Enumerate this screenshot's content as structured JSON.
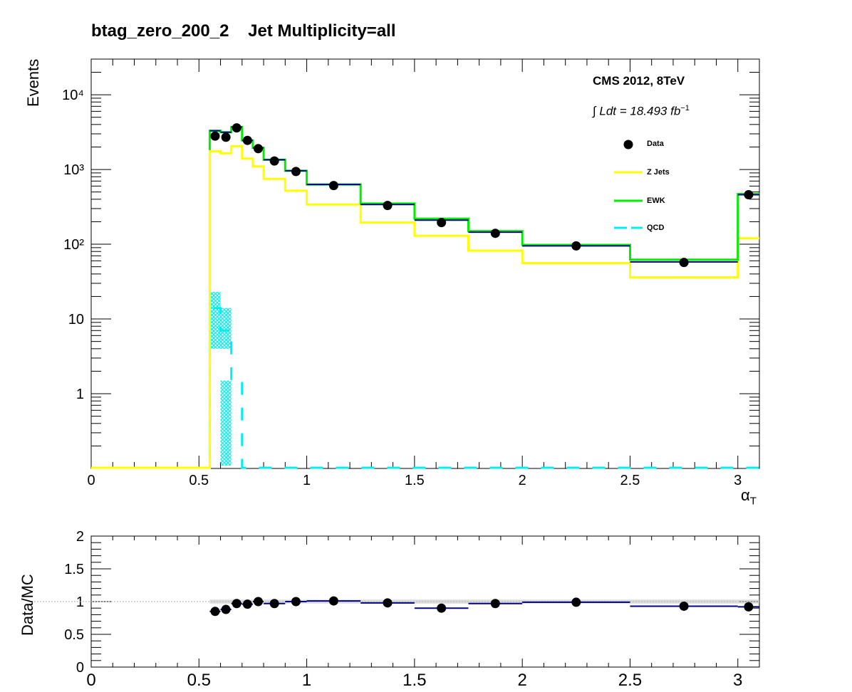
{
  "title": "btag_zero_200_2    Jet Multiplicity=all",
  "annotations": {
    "cms": "CMS 2012, 8TeV",
    "lumi_prefix": "∫ Ldt = 18.493 ",
    "lumi_unit": "fb",
    "lumi_exp": "−1"
  },
  "colors": {
    "data": "#000000",
    "zjets": "#ffff00",
    "ewk": "#00ee00",
    "qcd": "#00eeee",
    "total": "#00008b",
    "ratio_band": "#c0c0c0"
  },
  "chart_data": [
    {
      "type": "line",
      "subtype": "step-histogram",
      "ylabel": "Events",
      "xlabel": "α",
      "xlabel_sub": "T",
      "yscale": "log",
      "xlim": [
        0,
        3.1
      ],
      "ylim": [
        0.1,
        30000
      ],
      "xticks": [
        "0",
        "0.5",
        "1",
        "1.5",
        "2",
        "2.5",
        "3"
      ],
      "yticks": [
        "1",
        "10",
        "10²",
        "10³",
        "10⁴"
      ],
      "legend_position": "top-right",
      "bin_edges": [
        0,
        0.55,
        0.6,
        0.65,
        0.7,
        0.75,
        0.8,
        0.9,
        1.0,
        1.25,
        1.5,
        1.75,
        2.0,
        2.5,
        3.0,
        3.1
      ],
      "series": [
        {
          "name": "Z Jets",
          "values": [
            0.1,
            1750,
            1650,
            2050,
            1400,
            1100,
            750,
            520,
            340,
            195,
            130,
            82,
            56,
            36,
            120
          ]
        },
        {
          "name": "EWK",
          "values": [
            0.1,
            3300,
            3150,
            3700,
            2450,
            1950,
            1350,
            960,
            630,
            350,
            220,
            150,
            98,
            62,
            470
          ]
        },
        {
          "name": "QCD",
          "values": [
            0.1,
            14,
            7,
            1.5,
            0.1,
            0.1,
            0.1,
            0.1,
            0.1,
            0.1,
            0.1,
            0.1,
            0.1,
            0.1,
            0.1
          ]
        },
        {
          "name": "Data",
          "x": [
            0.575,
            0.625,
            0.675,
            0.725,
            0.775,
            0.85,
            0.95,
            1.125,
            1.375,
            1.625,
            1.875,
            2.25,
            2.75,
            3.05
          ],
          "values": [
            2800,
            2700,
            3600,
            2450,
            1900,
            1300,
            940,
            610,
            330,
            195,
            140,
            95,
            57,
            460
          ]
        }
      ],
      "total_mc": [
        0.1,
        3300,
        3150,
        3700,
        2450,
        1950,
        1350,
        960,
        630,
        340,
        210,
        145,
        95,
        58,
        460
      ],
      "qcd_band_low": [
        0.1,
        4,
        4,
        0.1,
        0.1
      ],
      "qcd_band_high": [
        0.1,
        23,
        14,
        0.1,
        0.1
      ]
    },
    {
      "type": "scatter",
      "ylabel": "Data/MC",
      "xlim": [
        0,
        3.1
      ],
      "ylim": [
        0,
        2
      ],
      "xticks": [
        "0",
        "0.5",
        "1",
        "1.5",
        "2",
        "2.5",
        "3"
      ],
      "yticks": [
        "0",
        "0.5",
        "1",
        "1.5",
        "2"
      ],
      "x": [
        0.575,
        0.625,
        0.675,
        0.725,
        0.775,
        0.85,
        0.95,
        1.125,
        1.375,
        1.625,
        1.875,
        2.25,
        2.75,
        3.05
      ],
      "values": [
        0.85,
        0.88,
        0.97,
        0.96,
        1.0,
        0.97,
        1.0,
        1.01,
        0.98,
        0.9,
        0.97,
        0.99,
        0.93,
        0.92
      ],
      "bin_low": [
        0.55,
        0.6,
        0.65,
        0.7,
        0.75,
        0.8,
        0.9,
        1.0,
        1.25,
        1.5,
        1.75,
        2.0,
        2.5,
        3.0
      ],
      "bin_high": [
        0.6,
        0.65,
        0.7,
        0.75,
        0.8,
        0.9,
        1.0,
        1.25,
        1.5,
        1.75,
        2.0,
        2.5,
        3.0,
        3.1
      ]
    }
  ]
}
